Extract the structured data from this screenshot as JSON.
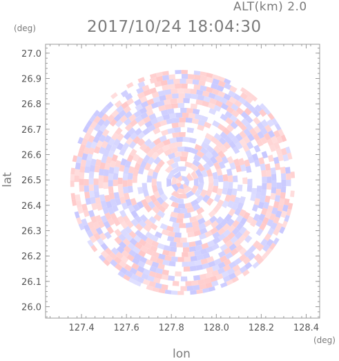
{
  "header": {
    "alt_label": "ALT(km) 2.0",
    "datetime": "2017/10/24 18:04:30",
    "y_unit": "(deg)",
    "x_unit": "(deg)"
  },
  "chart_data": {
    "type": "heatmap",
    "xlabel": "lon",
    "ylabel": "lat",
    "xlim": [
      127.24,
      128.46
    ],
    "ylim": [
      25.955,
      27.035
    ],
    "x_ticks": [
      127.4,
      127.6,
      127.8,
      128.0,
      128.2,
      128.4
    ],
    "x_tick_labels": [
      "127.4",
      "127.6",
      "127.8",
      "128.0",
      "128.2",
      "128.4"
    ],
    "y_ticks": [
      26.0,
      26.1,
      26.2,
      26.3,
      26.4,
      26.5,
      26.6,
      26.7,
      26.8,
      26.9,
      27.0
    ],
    "y_tick_labels": [
      "26.0",
      "26.1",
      "26.2",
      "26.3",
      "26.4",
      "26.5",
      "26.6",
      "26.7",
      "26.8",
      "26.9",
      "27.0"
    ],
    "domain_center": [
      127.85,
      26.49
    ],
    "domain_radius_deg": 0.5,
    "colors": {
      "positive": "#ff9a9a",
      "negative": "#9a9aff",
      "frame": "#9a9a9a"
    },
    "grid": false
  }
}
